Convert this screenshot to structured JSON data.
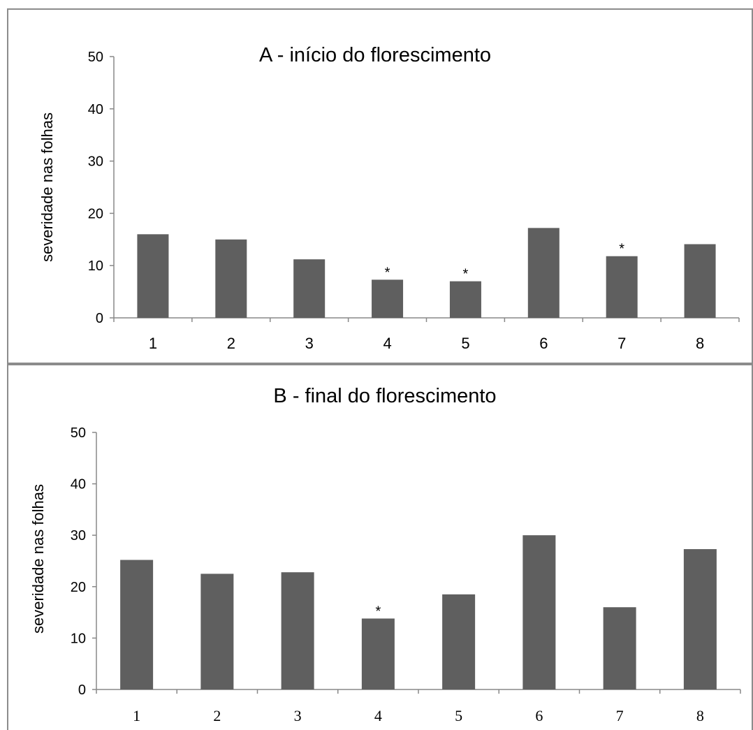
{
  "chart_data": [
    {
      "type": "bar",
      "title": "A - início do florescimento",
      "ylabel": "severidade nas folhas",
      "xlabel": "",
      "categories": [
        "1",
        "2",
        "3",
        "4",
        "5",
        "6",
        "7",
        "8"
      ],
      "values": [
        16,
        15,
        11.2,
        7.3,
        7,
        17.2,
        11.8,
        14.1
      ],
      "annotations": [
        "",
        "",
        "",
        "*",
        "*",
        "",
        "*",
        ""
      ],
      "ylim": [
        0,
        50
      ],
      "yticks": [
        "0",
        "10",
        "20",
        "30",
        "40",
        "50"
      ],
      "bar_color": "#5f5f5f",
      "grid": false,
      "legend": "none"
    },
    {
      "type": "bar",
      "title": "B - final do florescimento",
      "ylabel": "severidade nas folhas",
      "xlabel": "",
      "categories": [
        "1",
        "2",
        "3",
        "4",
        "5",
        "6",
        "7",
        "8"
      ],
      "values": [
        25.2,
        22.5,
        22.8,
        13.8,
        18.5,
        30,
        16,
        27.3
      ],
      "annotations": [
        "",
        "",
        "",
        "*",
        "",
        "",
        "",
        ""
      ],
      "ylim": [
        0,
        50
      ],
      "yticks": [
        "0",
        "10",
        "20",
        "30",
        "40",
        "50"
      ],
      "bar_color": "#5f5f5f",
      "grid": false,
      "legend": "none"
    }
  ]
}
